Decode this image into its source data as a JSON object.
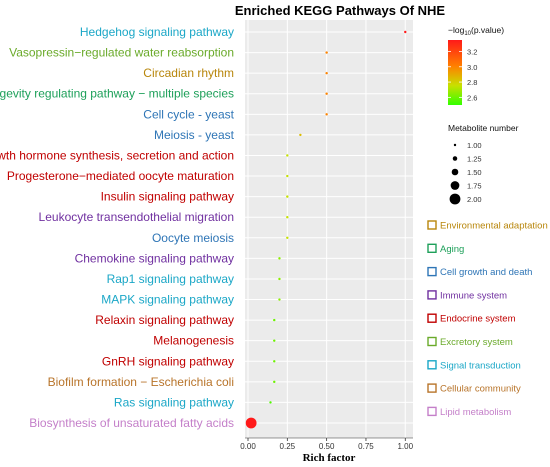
{
  "chart_data": {
    "type": "scatter",
    "title": "Enriched KEGG Pathways Of NHE",
    "xlabel": "Rich factor",
    "xlim": [
      0,
      1.03
    ],
    "xticks": [
      0.0,
      0.25,
      0.5,
      0.75,
      1.0
    ],
    "xtick_labels": [
      "0.00",
      "0.25",
      "0.50",
      "0.75",
      "1.00"
    ],
    "grid": true,
    "background": "#ebebeb",
    "points": [
      {
        "pathway": "Hedgehog signaling pathway",
        "rich_factor": 1.0,
        "log_p": 3.35,
        "count": 1,
        "class": "Signal transduction"
      },
      {
        "pathway": "Vasopressin−regulated water reabsorption",
        "rich_factor": 0.5,
        "log_p": 3.0,
        "count": 1,
        "class": "Excretory system"
      },
      {
        "pathway": "Circadian rhythm",
        "rich_factor": 0.5,
        "log_p": 3.0,
        "count": 1,
        "class": "Environmental adaptation"
      },
      {
        "pathway": "Longevity regulating pathway − multiple species",
        "rich_factor": 0.5,
        "log_p": 3.0,
        "count": 1,
        "class": "Aging"
      },
      {
        "pathway": "Cell cycle - yeast",
        "rich_factor": 0.5,
        "log_p": 3.0,
        "count": 1,
        "class": "Cell growth and death"
      },
      {
        "pathway": "Meiosis - yeast",
        "rich_factor": 0.333,
        "log_p": 2.85,
        "count": 1,
        "class": "Cell growth and death"
      },
      {
        "pathway": "Growth hormone synthesis, secretion and action",
        "rich_factor": 0.25,
        "log_p": 2.75,
        "count": 1,
        "class": "Endocrine system"
      },
      {
        "pathway": "Progesterone−mediated oocyte maturation",
        "rich_factor": 0.25,
        "log_p": 2.75,
        "count": 1,
        "class": "Endocrine system"
      },
      {
        "pathway": "Insulin signaling pathway",
        "rich_factor": 0.25,
        "log_p": 2.75,
        "count": 1,
        "class": "Endocrine system"
      },
      {
        "pathway": "Leukocyte transendothelial migration",
        "rich_factor": 0.25,
        "log_p": 2.75,
        "count": 1,
        "class": "Immune system"
      },
      {
        "pathway": "Oocyte meiosis",
        "rich_factor": 0.25,
        "log_p": 2.75,
        "count": 1,
        "class": "Cell growth and death"
      },
      {
        "pathway": "Chemokine signaling pathway",
        "rich_factor": 0.2,
        "log_p": 2.65,
        "count": 1,
        "class": "Immune system"
      },
      {
        "pathway": "Rap1 signaling pathway",
        "rich_factor": 0.2,
        "log_p": 2.65,
        "count": 1,
        "class": "Signal transduction"
      },
      {
        "pathway": "MAPK signaling pathway",
        "rich_factor": 0.2,
        "log_p": 2.65,
        "count": 1,
        "class": "Signal transduction"
      },
      {
        "pathway": "Relaxin signaling pathway",
        "rich_factor": 0.167,
        "log_p": 2.6,
        "count": 1,
        "class": "Endocrine system"
      },
      {
        "pathway": "Melanogenesis",
        "rich_factor": 0.167,
        "log_p": 2.6,
        "count": 1,
        "class": "Endocrine system"
      },
      {
        "pathway": "GnRH signaling pathway",
        "rich_factor": 0.167,
        "log_p": 2.6,
        "count": 1,
        "class": "Endocrine system"
      },
      {
        "pathway": "Biofilm formation − Escherichia coli",
        "rich_factor": 0.167,
        "log_p": 2.6,
        "count": 1,
        "class": "Cellular community"
      },
      {
        "pathway": "Ras signaling pathway",
        "rich_factor": 0.143,
        "log_p": 2.55,
        "count": 1,
        "class": "Signal transduction"
      },
      {
        "pathway": "Biosynthesis of unsaturated fatty acids",
        "rich_factor": 0.02,
        "log_p": 3.35,
        "count": 2,
        "class": "Lipid metabolism"
      }
    ],
    "color_legend": {
      "title_prefix": "−log",
      "title_sub": "10",
      "title_suffix": "(p.value)",
      "ticks": [
        3.2,
        3.0,
        2.8,
        2.6
      ],
      "tick_labels": [
        "3.2",
        "3.0",
        "2.8",
        "2.6"
      ],
      "range": [
        2.5,
        3.35
      ],
      "colors": [
        "#ff1a1a",
        "#ff7f00",
        "#c8e000",
        "#33ff00"
      ]
    },
    "size_legend": {
      "title": "Metabolite number",
      "values": [
        1.0,
        1.25,
        1.5,
        1.75,
        2.0
      ],
      "labels": [
        "1.00",
        "1.25",
        "1.50",
        "1.75",
        "2.00"
      ]
    },
    "class_legend": [
      {
        "label": "Environmental adaptation",
        "color": "#b8860b"
      },
      {
        "label": "Aging",
        "color": "#1ea05a"
      },
      {
        "label": "Cell growth and death",
        "color": "#2e75b6"
      },
      {
        "label": "Immune system",
        "color": "#7030a0"
      },
      {
        "label": "Endocrine system",
        "color": "#c00000"
      },
      {
        "label": "Excretory system",
        "color": "#6aaa2a"
      },
      {
        "label": "Signal transduction",
        "color": "#1ba7c7"
      },
      {
        "label": "Cellular community",
        "color": "#b8742a"
      },
      {
        "label": "Lipid metabolism",
        "color": "#c47fc9"
      }
    ]
  }
}
